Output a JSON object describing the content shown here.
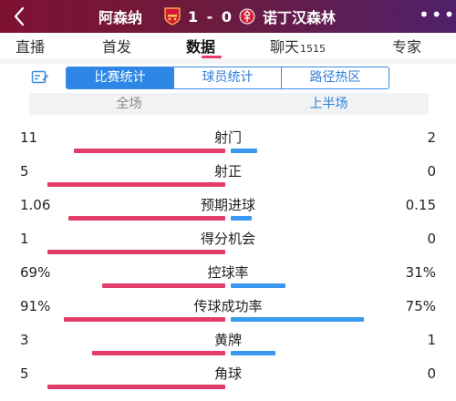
{
  "header": {
    "back_icon": "chevron-left-icon",
    "home_team": "阿森纳",
    "score": "1 - 0",
    "away_team": "诺丁汉森林",
    "more_icon": "more-dots-icon",
    "colors": {
      "gradient_start": "#7f1233",
      "gradient_end": "#50206a"
    }
  },
  "tabs": [
    {
      "label": "直播"
    },
    {
      "label": "首发"
    },
    {
      "label": "数据",
      "active": true
    },
    {
      "label": "聊天",
      "badge": "1515"
    },
    {
      "label": "专家"
    }
  ],
  "segment": {
    "icon": "stats-board-icon",
    "options": [
      "比赛统计",
      "球员统计",
      "路径热区"
    ],
    "selected": "比赛统计"
  },
  "half": {
    "options": [
      "全场",
      "上半场"
    ],
    "selected": "上半场"
  },
  "stats": [
    {
      "label": "射门",
      "home": "11",
      "away": "2",
      "home_frac": 0.85,
      "away_frac": 0.15
    },
    {
      "label": "射正",
      "home": "5",
      "away": "0",
      "home_frac": 1.0,
      "away_frac": 0.0
    },
    {
      "label": "预期进球",
      "home": "1.06",
      "away": "0.15",
      "home_frac": 0.88,
      "away_frac": 0.12
    },
    {
      "label": "得分机会",
      "home": "1",
      "away": "0",
      "home_frac": 1.0,
      "away_frac": 0.0
    },
    {
      "label": "控球率",
      "home": "69%",
      "away": "31%",
      "home_frac": 0.69,
      "away_frac": 0.31
    },
    {
      "label": "传球成功率",
      "home": "91%",
      "away": "75%",
      "home_frac": 0.91,
      "away_frac": 0.75
    },
    {
      "label": "黄牌",
      "home": "3",
      "away": "1",
      "home_frac": 0.75,
      "away_frac": 0.25
    },
    {
      "label": "角球",
      "home": "5",
      "away": "0",
      "home_frac": 1.0,
      "away_frac": 0.0
    }
  ],
  "colors": {
    "home_bar": "#e23c6a",
    "away_bar": "#3a9af0",
    "accent": "#2e87e6"
  }
}
